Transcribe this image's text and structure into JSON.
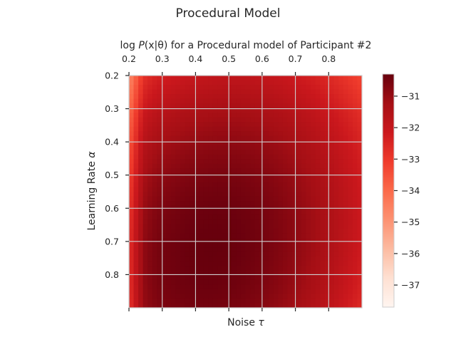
{
  "figure": {
    "suptitle": "Procedural Model"
  },
  "chart_data": {
    "type": "heatmap",
    "title": "log P(x|θ) for a Procedural model of Participant #2",
    "title_parts": {
      "pre": "log ",
      "func": "P",
      "args": "(x|θ)",
      "post": " for a Procedural model of Participant #2"
    },
    "xlabel": "Noise τ",
    "xlabel_parts": {
      "text": "Noise ",
      "sym": "τ"
    },
    "ylabel": "Learning Rate α",
    "ylabel_parts": {
      "text": "Learning Rate ",
      "sym": "α"
    },
    "x_ticks_top": [
      "0.2",
      "0.3",
      "0.4",
      "0.5",
      "0.6",
      "0.7",
      "0.8"
    ],
    "y_ticks": [
      "0.2",
      "0.3",
      "0.4",
      "0.5",
      "0.6",
      "0.7",
      "0.8"
    ],
    "x_range": [
      0.2,
      0.9
    ],
    "y_range": [
      0.2,
      0.9
    ],
    "y_inverted": true,
    "grid": true,
    "colormap": "Reds",
    "colorbar": {
      "ticks": [
        "-31",
        "-32",
        "-33",
        "-34",
        "-35",
        "-36",
        "-37"
      ],
      "tick_values": [
        -31,
        -32,
        -33,
        -34,
        -35,
        -36,
        -37
      ],
      "vmin": -37.7,
      "vmax": -30.3,
      "tick_glyph": "−"
    },
    "peak": {
      "noise": 0.45,
      "learning_rate": 0.72,
      "value": -30.3
    },
    "grid_resolution": 50
  }
}
